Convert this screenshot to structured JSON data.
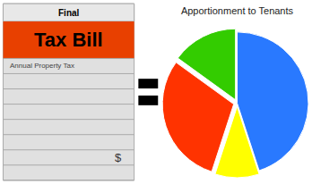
{
  "chart_data": {
    "type": "pie",
    "title": "Apportionment to Tenants",
    "values": [
      0.45,
      0.15,
      0.3,
      0.1
    ],
    "colors": [
      "#2979FF",
      "#33CC00",
      "#FF3300",
      "#FFFF00"
    ],
    "annotations": [
      "Final",
      "Tax Bill",
      "Annual Property Tax",
      "$"
    ]
  }
}
